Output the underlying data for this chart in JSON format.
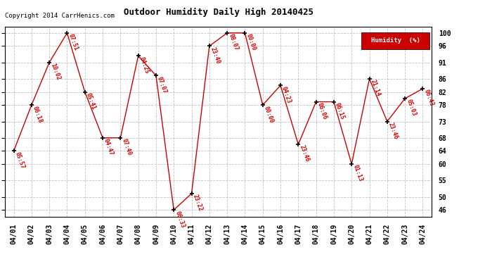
{
  "title": "Outdoor Humidity Daily High 20140425",
  "copyright": "Copyright 2014 CarrHenics.com",
  "legend_label": "Humidity  (%)",
  "legend_bg": "#cc0000",
  "legend_fg": "#ffffff",
  "ylabel_right": [
    "100",
    "96",
    "91",
    "86",
    "82",
    "78",
    "73",
    "68",
    "64",
    "60",
    "55",
    "50",
    "46"
  ],
  "yticks": [
    100,
    96,
    91,
    86,
    82,
    78,
    73,
    68,
    64,
    60,
    55,
    50,
    46
  ],
  "ylim": [
    44,
    102
  ],
  "dates": [
    "04/01",
    "04/02",
    "04/03",
    "04/04",
    "04/05",
    "04/06",
    "04/07",
    "04/08",
    "04/09",
    "04/10",
    "04/11",
    "04/12",
    "04/13",
    "04/14",
    "04/15",
    "04/16",
    "04/17",
    "04/18",
    "04/19",
    "04/20",
    "04/21",
    "04/22",
    "04/23",
    "04/24"
  ],
  "values": [
    64,
    78,
    91,
    100,
    82,
    68,
    68,
    93,
    87,
    46,
    51,
    96,
    100,
    100,
    78,
    84,
    66,
    79,
    79,
    60,
    86,
    73,
    80,
    83
  ],
  "labels": [
    "05:57",
    "06:18",
    "10:02",
    "07:51",
    "05:41",
    "04:47",
    "07:40",
    "04:25",
    "07:07",
    "06:33",
    "23:22",
    "23:40",
    "08:07",
    "00:00",
    "00:00",
    "04:23",
    "23:46",
    "06:06",
    "06:15",
    "01:13",
    "21:14",
    "23:46",
    "05:03",
    "06:43"
  ],
  "line_color": "#cc0000",
  "marker_color": "#000000",
  "label_color": "#cc0000",
  "bg_color": "#ffffff",
  "grid_color": "#bbbbbb",
  "title_color": "#000000",
  "figwidth": 6.9,
  "figheight": 3.75,
  "dpi": 100
}
